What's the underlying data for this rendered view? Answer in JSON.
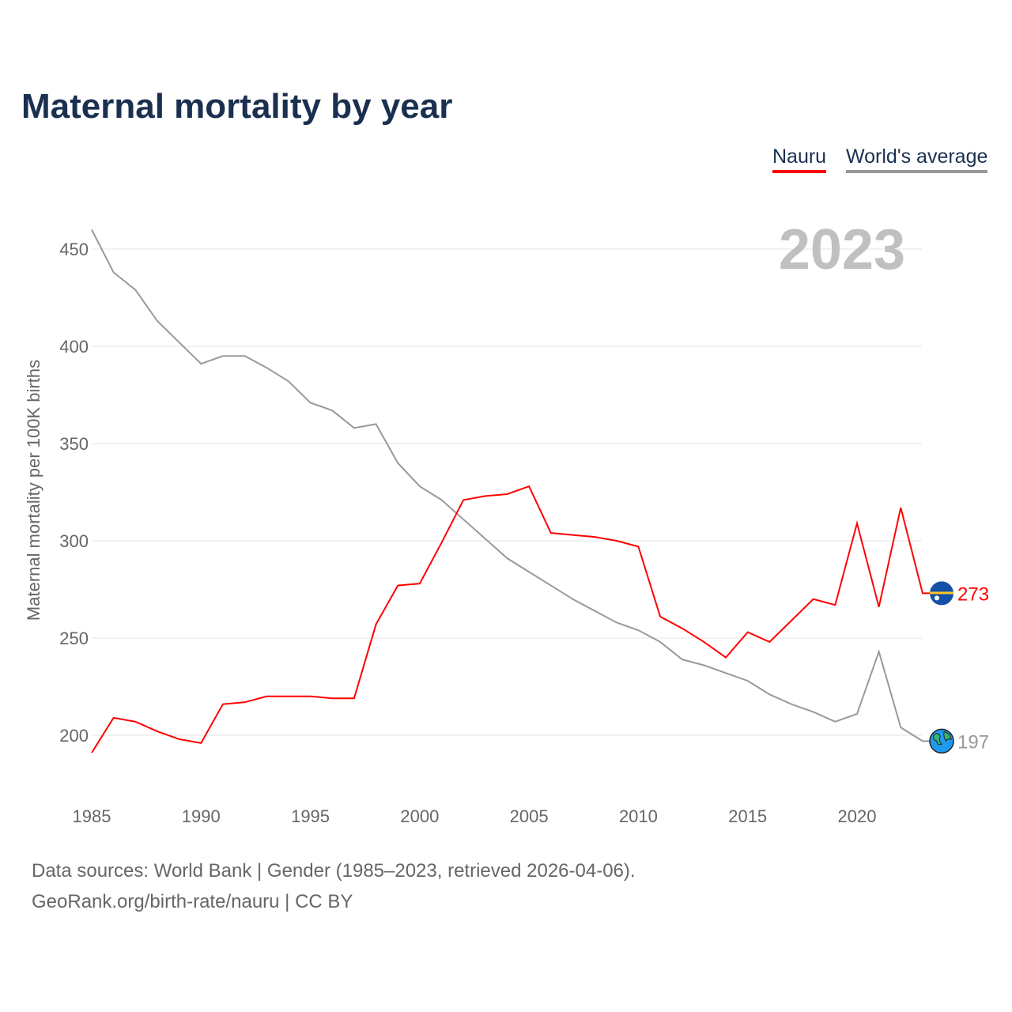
{
  "chart_data": {
    "type": "line",
    "title": "Maternal mortality by year",
    "ylabel": "Maternal mortality per 100K births",
    "xlabel": "",
    "year_label": "2023",
    "x": [
      1985,
      1986,
      1987,
      1988,
      1989,
      1990,
      1991,
      1992,
      1993,
      1994,
      1995,
      1996,
      1997,
      1998,
      1999,
      2000,
      2001,
      2002,
      2003,
      2004,
      2005,
      2006,
      2007,
      2008,
      2009,
      2010,
      2011,
      2012,
      2013,
      2014,
      2015,
      2016,
      2017,
      2018,
      2019,
      2020,
      2021,
      2022,
      2023
    ],
    "xlim": [
      1985,
      2023
    ],
    "ylim": [
      180,
      465
    ],
    "xticks": [
      "1985",
      "1990",
      "1995",
      "2000",
      "2005",
      "2010",
      "2015",
      "2020"
    ],
    "yticks": [
      "200",
      "250",
      "300",
      "350",
      "400",
      "450"
    ],
    "grid": true,
    "legend_position": "top-right",
    "series": [
      {
        "name": "Nauru",
        "color": "#ff0000",
        "end_label": "273",
        "icon": "nauru-flag-icon",
        "values": [
          191,
          209,
          207,
          202,
          198,
          196,
          216,
          217,
          220,
          220,
          220,
          219,
          219,
          257,
          277,
          278,
          299,
          321,
          323,
          324,
          328,
          304,
          303,
          302,
          300,
          297,
          261,
          255,
          248,
          240,
          253,
          248,
          259,
          270,
          267,
          309,
          266,
          317,
          273
        ]
      },
      {
        "name": "World's average",
        "color": "#999999",
        "end_label": "197",
        "icon": "globe-icon",
        "values": [
          460,
          438,
          429,
          413,
          402,
          391,
          395,
          395,
          389,
          382,
          371,
          367,
          358,
          360,
          340,
          328,
          321,
          311,
          301,
          291,
          284,
          277,
          270,
          264,
          258,
          254,
          248,
          239,
          236,
          232,
          228,
          221,
          216,
          212,
          207,
          211,
          243,
          204,
          197
        ]
      }
    ]
  },
  "footer": {
    "line1": "Data sources: World Bank | Gender (1985–2023, retrieved 2026-04-06).",
    "line2": "GeoRank.org/birth-rate/nauru | CC BY"
  }
}
